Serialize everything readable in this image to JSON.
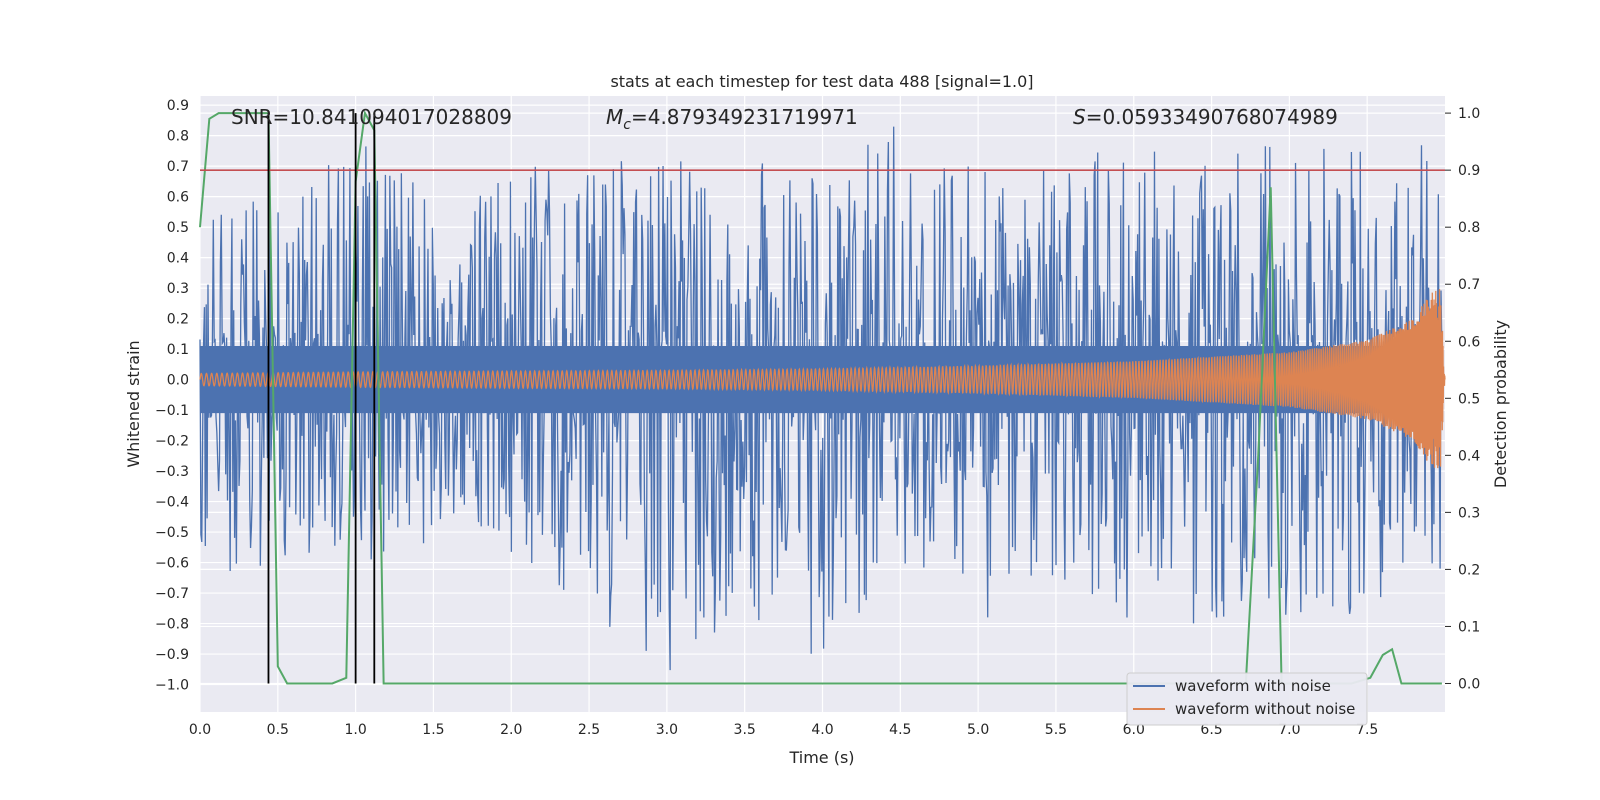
{
  "chart_data": {
    "type": "line",
    "title": "stats at each timestep for test data 488 [signal=1.0]",
    "xlabel": "Time (s)",
    "ylabel": "Whitened strain",
    "y2label": "Detection probability",
    "xlim": [
      0.0,
      8.0
    ],
    "ylim": [
      -1.09,
      0.93
    ],
    "y2lim": [
      -0.05,
      1.03
    ],
    "xticks": [
      0.0,
      0.5,
      1.0,
      1.5,
      2.0,
      2.5,
      3.0,
      3.5,
      4.0,
      4.5,
      5.0,
      5.5,
      6.0,
      6.5,
      7.0,
      7.5
    ],
    "xtick_labels": [
      "0.0",
      "0.5",
      "1.0",
      "1.5",
      "2.0",
      "2.5",
      "3.0",
      "3.5",
      "4.0",
      "4.5",
      "5.0",
      "5.5",
      "6.0",
      "6.5",
      "7.0",
      "7.5"
    ],
    "yticks": [
      0.9,
      0.8,
      0.7,
      0.6,
      0.5,
      0.4,
      0.3,
      0.2,
      0.1,
      0.0,
      -0.1,
      -0.2,
      -0.3,
      -0.4,
      -0.5,
      -0.6,
      -0.7,
      -0.8,
      -0.9,
      -1.0
    ],
    "ytick_labels": [
      "0.9",
      "0.8",
      "0.7",
      "0.6",
      "0.5",
      "0.4",
      "0.3",
      "0.2",
      "0.1",
      "0.0",
      "−0.1",
      "−0.2",
      "−0.3",
      "−0.4",
      "−0.5",
      "−0.6",
      "−0.7",
      "−0.8",
      "−0.9",
      "−1.0"
    ],
    "y2ticks": [
      1.0,
      0.9,
      0.8,
      0.7,
      0.6,
      0.5,
      0.4,
      0.3,
      0.2,
      0.1,
      0.0
    ],
    "y2tick_labels": [
      "1.0",
      "0.9",
      "0.8",
      "0.7",
      "0.6",
      "0.5",
      "0.4",
      "0.3",
      "0.2",
      "0.1",
      "0.0"
    ],
    "annotations": {
      "snr_label": "SNR=10.841094017028809",
      "mc_symbol": "M",
      "mc_subscript": "c",
      "mc_value": "=4.879349231719971",
      "s_symbol": "S",
      "s_value": "=0.05933490768074989"
    },
    "threshold": 0.9,
    "vertical_lines_x": [
      0.44,
      1.0,
      1.12
    ],
    "series": [
      {
        "name": "waveform with noise",
        "color": "#4c72b0",
        "axis": "left",
        "envelope_x": [
          0.0,
          0.5,
          1.0,
          1.5,
          2.0,
          2.5,
          3.0,
          3.5,
          4.0,
          4.5,
          5.0,
          5.5,
          6.0,
          6.5,
          7.0,
          7.5,
          7.98
        ],
        "envelope_max": [
          0.55,
          0.6,
          0.8,
          0.6,
          0.68,
          0.74,
          0.75,
          0.72,
          0.68,
          0.85,
          0.7,
          0.72,
          0.8,
          0.78,
          0.8,
          0.75,
          0.79
        ],
        "envelope_min": [
          -0.66,
          -0.6,
          -0.6,
          -0.55,
          -0.62,
          -0.75,
          -1.0,
          -0.78,
          -0.98,
          -0.7,
          -0.81,
          -0.7,
          -0.83,
          -0.84,
          -0.8,
          -0.77,
          -0.65
        ]
      },
      {
        "name": "waveform without noise",
        "color": "#dd8452",
        "axis": "left",
        "amplitude_x": [
          0.0,
          1.0,
          2.0,
          3.0,
          4.0,
          5.0,
          6.0,
          7.0,
          7.5,
          7.8,
          7.9,
          7.97,
          8.0
        ],
        "amplitude": [
          0.02,
          0.025,
          0.028,
          0.03,
          0.035,
          0.045,
          0.06,
          0.09,
          0.13,
          0.2,
          0.28,
          0.3,
          0.0
        ]
      },
      {
        "name": "detection probability",
        "color": "#55a868",
        "axis": "right",
        "x": [
          0.0,
          0.06,
          0.12,
          0.2,
          0.3,
          0.44,
          0.5,
          0.56,
          0.7,
          0.85,
          0.94,
          1.0,
          1.06,
          1.12,
          1.18,
          1.3,
          2.0,
          3.0,
          4.0,
          5.0,
          6.0,
          6.6,
          6.72,
          6.8,
          6.88,
          6.95,
          7.0,
          7.2,
          7.4,
          7.52,
          7.6,
          7.66,
          7.72,
          7.8,
          7.98
        ],
        "y": [
          0.8,
          0.99,
          1.0,
          1.0,
          1.0,
          1.0,
          0.03,
          0.0,
          0.0,
          0.0,
          0.01,
          0.88,
          1.0,
          0.97,
          0.0,
          0.0,
          0.0,
          0.0,
          0.0,
          0.0,
          0.0,
          0.0,
          0.0,
          0.4,
          0.87,
          0.0,
          0.0,
          0.0,
          0.0,
          0.01,
          0.05,
          0.06,
          0.0,
          0.0,
          0.0
        ]
      },
      {
        "name": "threshold",
        "color": "#c44e52",
        "axis": "right",
        "value": 0.9
      }
    ],
    "legend": {
      "position": "bottom-right",
      "entries": [
        {
          "label": "waveform with noise",
          "color": "#4c72b0"
        },
        {
          "label": "waveform without noise",
          "color": "#dd8452"
        }
      ]
    }
  }
}
